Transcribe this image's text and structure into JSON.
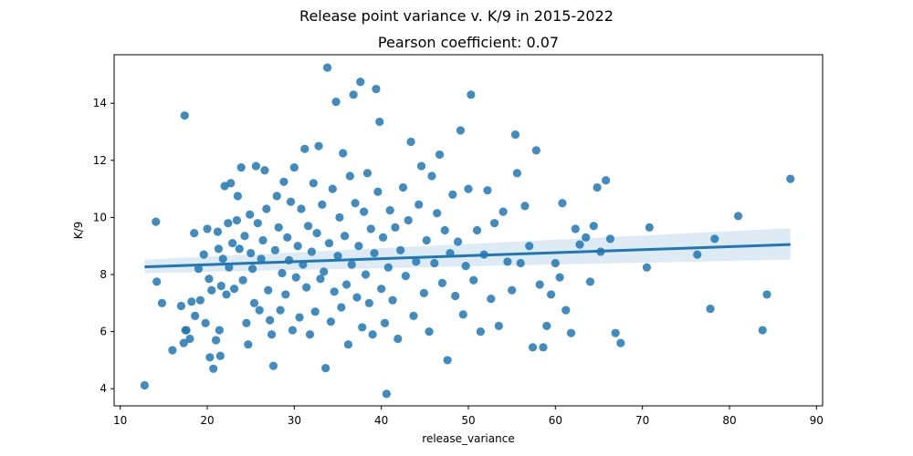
{
  "figure": {
    "suptitle": "Release point variance v. K/9 in 2015-2022",
    "title": "Pearson coefficient: 0.07"
  },
  "colors": {
    "points": "#1f77b4",
    "regression_line": "#1f77b4",
    "confidence_band": "#1f77b4"
  },
  "chart_data": {
    "type": "scatter",
    "title": "Pearson coefficient: 0.07",
    "xlabel": "release_variance",
    "ylabel": "K/9",
    "xlim": [
      9.3,
      90.7
    ],
    "ylim": [
      3.4,
      15.7
    ],
    "xticks": [
      10,
      20,
      30,
      40,
      50,
      60,
      70,
      80,
      90
    ],
    "yticks": [
      4,
      6,
      8,
      10,
      12,
      14
    ],
    "grid": false,
    "regression": {
      "start": [
        12.8,
        8.27
      ],
      "end": [
        87.0,
        9.05
      ],
      "ci_low_start": 8.05,
      "ci_high_start": 8.52,
      "ci_low_end": 8.52,
      "ci_high_end": 9.62
    },
    "points": [
      [
        12.8,
        4.12
      ],
      [
        14.1,
        9.85
      ],
      [
        14.2,
        7.75
      ],
      [
        14.8,
        7.0
      ],
      [
        16.0,
        5.35
      ],
      [
        17.0,
        6.9
      ],
      [
        17.3,
        5.6
      ],
      [
        17.4,
        13.57
      ],
      [
        17.5,
        6.05
      ],
      [
        17.6,
        6.05
      ],
      [
        18.0,
        5.75
      ],
      [
        18.2,
        7.05
      ],
      [
        18.5,
        9.45
      ],
      [
        18.6,
        6.55
      ],
      [
        19.0,
        8.2
      ],
      [
        19.2,
        7.1
      ],
      [
        19.6,
        8.7
      ],
      [
        19.8,
        6.3
      ],
      [
        20.0,
        9.6
      ],
      [
        20.2,
        7.85
      ],
      [
        20.3,
        5.1
      ],
      [
        20.5,
        7.45
      ],
      [
        20.7,
        4.7
      ],
      [
        21.0,
        5.7
      ],
      [
        21.2,
        9.5
      ],
      [
        21.3,
        8.9
      ],
      [
        21.4,
        6.05
      ],
      [
        21.5,
        5.15
      ],
      [
        21.6,
        7.6
      ],
      [
        21.8,
        8.55
      ],
      [
        22.0,
        11.1
      ],
      [
        22.2,
        7.3
      ],
      [
        22.4,
        9.8
      ],
      [
        22.5,
        8.25
      ],
      [
        22.7,
        11.2
      ],
      [
        22.9,
        9.1
      ],
      [
        23.1,
        7.5
      ],
      [
        23.4,
        9.9
      ],
      [
        23.5,
        10.75
      ],
      [
        23.7,
        8.9
      ],
      [
        23.9,
        11.75
      ],
      [
        24.1,
        7.8
      ],
      [
        24.3,
        9.35
      ],
      [
        24.5,
        6.3
      ],
      [
        24.7,
        5.55
      ],
      [
        24.9,
        10.1
      ],
      [
        25.0,
        8.75
      ],
      [
        25.2,
        8.2
      ],
      [
        25.4,
        7.0
      ],
      [
        25.6,
        11.8
      ],
      [
        25.8,
        9.8
      ],
      [
        26.0,
        6.75
      ],
      [
        26.2,
        8.55
      ],
      [
        26.4,
        9.2
      ],
      [
        26.6,
        11.65
      ],
      [
        26.8,
        10.3
      ],
      [
        27.0,
        7.45
      ],
      [
        27.2,
        6.4
      ],
      [
        27.4,
        5.9
      ],
      [
        27.6,
        4.8
      ],
      [
        27.8,
        8.85
      ],
      [
        28.0,
        10.75
      ],
      [
        28.2,
        9.65
      ],
      [
        28.4,
        6.75
      ],
      [
        28.6,
        8.05
      ],
      [
        28.8,
        11.25
      ],
      [
        29.0,
        7.3
      ],
      [
        29.2,
        9.3
      ],
      [
        29.4,
        8.5
      ],
      [
        29.6,
        10.55
      ],
      [
        29.8,
        6.05
      ],
      [
        30.0,
        11.75
      ],
      [
        30.2,
        7.9
      ],
      [
        30.4,
        9.0
      ],
      [
        30.6,
        6.5
      ],
      [
        30.8,
        10.3
      ],
      [
        31.0,
        8.35
      ],
      [
        31.2,
        12.4
      ],
      [
        31.4,
        7.55
      ],
      [
        31.6,
        9.7
      ],
      [
        31.8,
        5.9
      ],
      [
        32.0,
        8.8
      ],
      [
        32.2,
        11.2
      ],
      [
        32.4,
        6.7
      ],
      [
        32.6,
        9.45
      ],
      [
        32.8,
        12.5
      ],
      [
        33.0,
        7.85
      ],
      [
        33.2,
        10.45
      ],
      [
        33.4,
        8.1
      ],
      [
        33.6,
        4.72
      ],
      [
        33.8,
        15.25
      ],
      [
        34.0,
        9.1
      ],
      [
        34.2,
        6.35
      ],
      [
        34.4,
        11.0
      ],
      [
        34.6,
        7.4
      ],
      [
        34.8,
        14.05
      ],
      [
        35.0,
        8.65
      ],
      [
        35.2,
        10.0
      ],
      [
        35.4,
        6.85
      ],
      [
        35.6,
        12.25
      ],
      [
        35.8,
        9.35
      ],
      [
        36.0,
        7.65
      ],
      [
        36.2,
        5.55
      ],
      [
        36.4,
        11.45
      ],
      [
        36.6,
        8.35
      ],
      [
        36.8,
        14.3
      ],
      [
        37.0,
        10.5
      ],
      [
        37.2,
        7.2
      ],
      [
        37.4,
        9.0
      ],
      [
        37.6,
        14.75
      ],
      [
        37.8,
        6.15
      ],
      [
        38.0,
        10.2
      ],
      [
        38.2,
        8.0
      ],
      [
        38.4,
        11.55
      ],
      [
        38.6,
        7.0
      ],
      [
        38.8,
        9.6
      ],
      [
        39.0,
        5.9
      ],
      [
        39.2,
        8.75
      ],
      [
        39.4,
        14.5
      ],
      [
        39.6,
        10.9
      ],
      [
        39.8,
        13.35
      ],
      [
        40.0,
        7.5
      ],
      [
        40.2,
        9.3
      ],
      [
        40.4,
        6.3
      ],
      [
        40.6,
        3.82
      ],
      [
        40.8,
        8.25
      ],
      [
        41.0,
        10.25
      ],
      [
        41.3,
        7.1
      ],
      [
        41.6,
        9.65
      ],
      [
        41.9,
        5.75
      ],
      [
        42.2,
        8.85
      ],
      [
        42.5,
        11.05
      ],
      [
        42.8,
        7.95
      ],
      [
        43.1,
        9.9
      ],
      [
        43.4,
        12.65
      ],
      [
        43.7,
        6.55
      ],
      [
        44.0,
        8.45
      ],
      [
        44.3,
        10.45
      ],
      [
        44.6,
        11.8
      ],
      [
        44.9,
        7.35
      ],
      [
        45.2,
        9.2
      ],
      [
        45.5,
        6.0
      ],
      [
        45.8,
        11.45
      ],
      [
        46.1,
        8.4
      ],
      [
        46.4,
        10.15
      ],
      [
        46.7,
        12.2
      ],
      [
        47.0,
        7.7
      ],
      [
        47.3,
        9.55
      ],
      [
        47.6,
        5.0
      ],
      [
        47.9,
        8.75
      ],
      [
        48.2,
        10.8
      ],
      [
        48.5,
        7.25
      ],
      [
        48.8,
        9.15
      ],
      [
        49.1,
        13.05
      ],
      [
        49.4,
        6.6
      ],
      [
        49.7,
        8.3
      ],
      [
        50.0,
        11.0
      ],
      [
        50.3,
        14.3
      ],
      [
        50.6,
        7.8
      ],
      [
        51.0,
        9.55
      ],
      [
        51.4,
        6.0
      ],
      [
        51.8,
        8.7
      ],
      [
        52.2,
        10.95
      ],
      [
        52.6,
        7.15
      ],
      [
        53.0,
        9.8
      ],
      [
        53.5,
        6.2
      ],
      [
        54.0,
        10.2
      ],
      [
        54.5,
        8.45
      ],
      [
        55.0,
        7.45
      ],
      [
        55.4,
        12.9
      ],
      [
        55.6,
        11.55
      ],
      [
        56.0,
        8.4
      ],
      [
        56.5,
        10.4
      ],
      [
        57.0,
        9.0
      ],
      [
        57.4,
        5.45
      ],
      [
        57.8,
        12.35
      ],
      [
        58.2,
        7.65
      ],
      [
        58.6,
        5.45
      ],
      [
        59.0,
        6.2
      ],
      [
        59.5,
        7.3
      ],
      [
        60.0,
        8.4
      ],
      [
        60.5,
        7.9
      ],
      [
        60.8,
        10.5
      ],
      [
        61.2,
        6.75
      ],
      [
        61.8,
        5.95
      ],
      [
        62.3,
        9.6
      ],
      [
        62.8,
        9.05
      ],
      [
        63.5,
        9.3
      ],
      [
        64.0,
        7.75
      ],
      [
        64.4,
        9.7
      ],
      [
        64.8,
        11.05
      ],
      [
        65.2,
        8.8
      ],
      [
        65.8,
        11.3
      ],
      [
        66.3,
        9.25
      ],
      [
        66.9,
        5.95
      ],
      [
        67.5,
        5.6
      ],
      [
        70.5,
        8.25
      ],
      [
        70.8,
        9.65
      ],
      [
        76.3,
        8.7
      ],
      [
        77.8,
        6.8
      ],
      [
        78.3,
        9.25
      ],
      [
        81.0,
        10.05
      ],
      [
        83.8,
        6.05
      ],
      [
        84.3,
        7.3
      ],
      [
        87.0,
        11.35
      ]
    ]
  }
}
